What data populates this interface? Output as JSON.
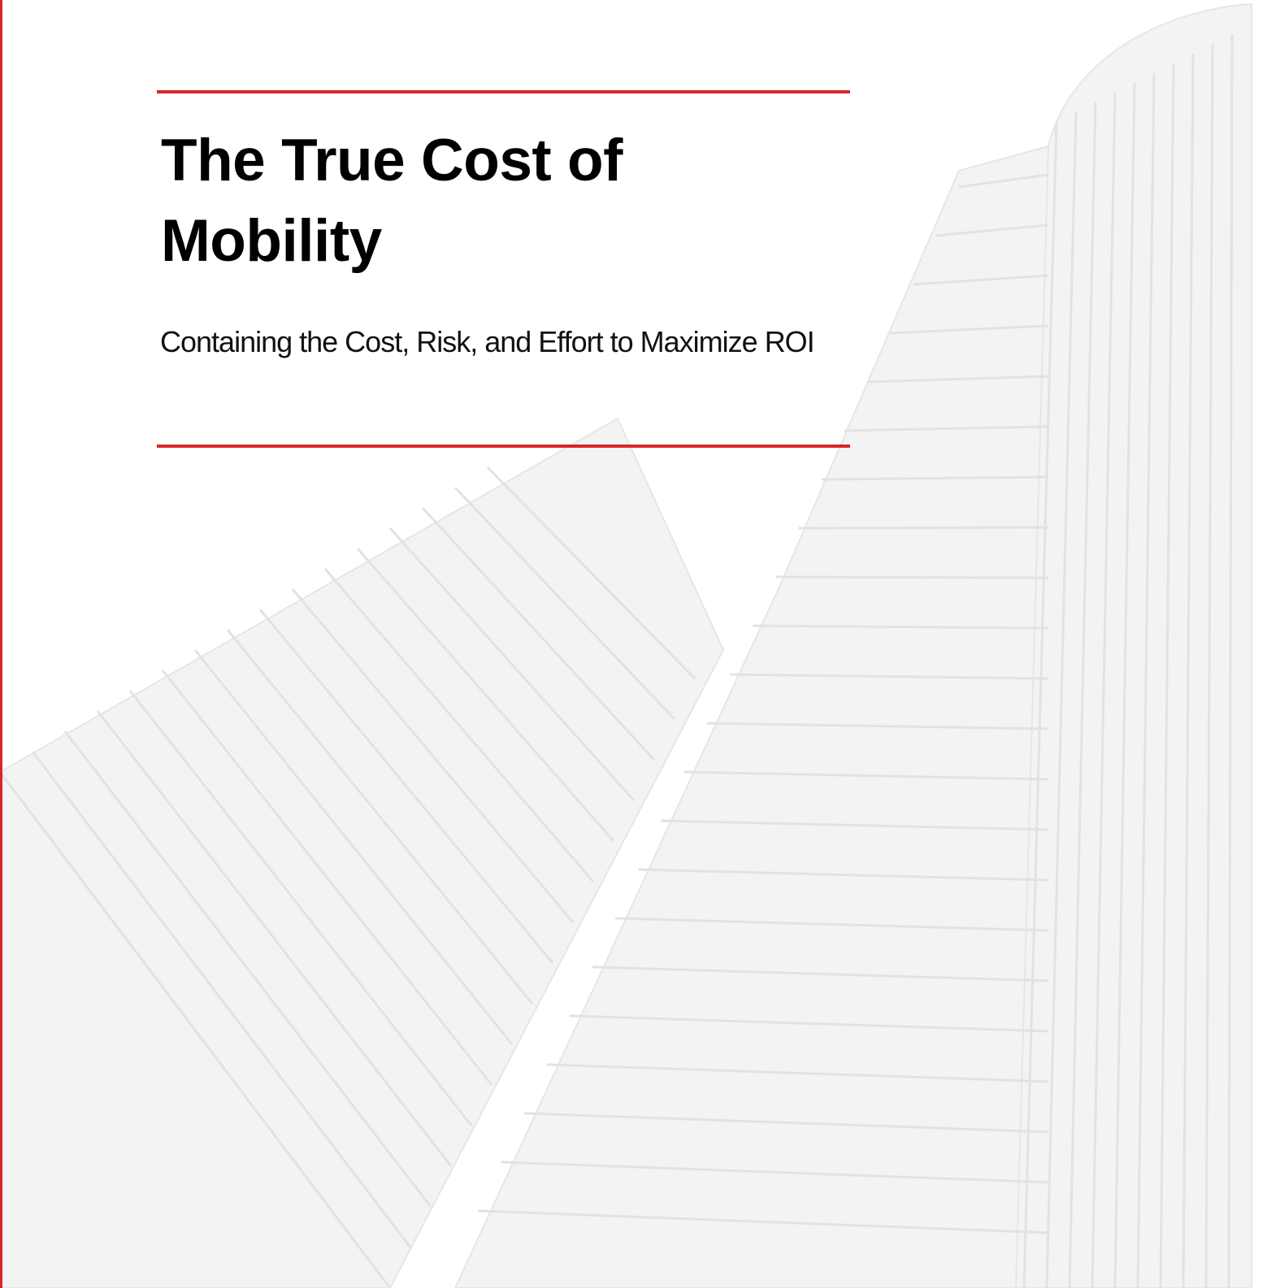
{
  "title": "The True Cost of Mobility",
  "subtitle": "Containing the Cost, Risk, and Effort to Maximize ROI"
}
